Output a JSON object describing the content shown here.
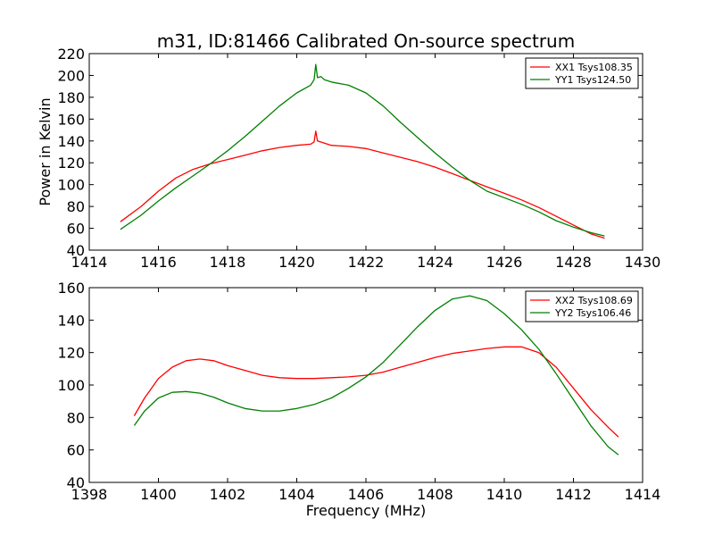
{
  "title": "m31, ID:81466 Calibrated On-source spectrum",
  "chart_data": [
    {
      "type": "line",
      "ylabel": "Power in Kelvin",
      "xlabel": "",
      "xlim": [
        1414,
        1430
      ],
      "ylim": [
        40,
        220
      ],
      "xticks": [
        1414,
        1416,
        1418,
        1420,
        1422,
        1424,
        1426,
        1428,
        1430
      ],
      "yticks": [
        40,
        60,
        80,
        100,
        120,
        140,
        160,
        180,
        200,
        220
      ],
      "legend_position": "top-right",
      "series": [
        {
          "name": "XX1 Tsys108.35",
          "color": "#ff0000",
          "x": [
            1414.9,
            1415.5,
            1416.0,
            1416.5,
            1417.0,
            1417.5,
            1418.0,
            1418.5,
            1419.0,
            1419.5,
            1420.0,
            1420.4,
            1420.5,
            1420.55,
            1420.6,
            1420.7,
            1420.8,
            1421.0,
            1421.5,
            1422.0,
            1422.5,
            1423.0,
            1423.5,
            1424.0,
            1424.5,
            1425.0,
            1425.5,
            1426.0,
            1426.5,
            1427.0,
            1427.5,
            1428.0,
            1428.5,
            1428.9
          ],
          "y": [
            66,
            80,
            94,
            106,
            114,
            119,
            123,
            127,
            131,
            134,
            136,
            137,
            139,
            149,
            140,
            139,
            138,
            136,
            135,
            133,
            129,
            125,
            121,
            116,
            110,
            104,
            98,
            92,
            86,
            79,
            71,
            63,
            55,
            51
          ]
        },
        {
          "name": "YY1 Tsys124.50",
          "color": "#008000",
          "x": [
            1414.9,
            1415.5,
            1416.0,
            1416.5,
            1417.0,
            1417.5,
            1418.0,
            1418.5,
            1419.0,
            1419.5,
            1420.0,
            1420.4,
            1420.5,
            1420.55,
            1420.6,
            1420.7,
            1420.8,
            1421.0,
            1421.5,
            1422.0,
            1422.5,
            1423.0,
            1423.5,
            1424.0,
            1424.5,
            1425.0,
            1425.5,
            1426.0,
            1426.5,
            1427.0,
            1427.5,
            1428.0,
            1428.5,
            1428.9
          ],
          "y": [
            59,
            72,
            85,
            97,
            108,
            119,
            131,
            144,
            158,
            172,
            184,
            191,
            196,
            210,
            198,
            199,
            196,
            194,
            191,
            184,
            172,
            157,
            143,
            129,
            116,
            104,
            94,
            88,
            82,
            75,
            67,
            61,
            56,
            53
          ]
        }
      ]
    },
    {
      "type": "line",
      "ylabel": "",
      "xlabel": "Frequency (MHz)",
      "xlim": [
        1398,
        1414
      ],
      "ylim": [
        40,
        160
      ],
      "xticks": [
        1398,
        1400,
        1402,
        1404,
        1406,
        1408,
        1410,
        1412,
        1414
      ],
      "yticks": [
        40,
        60,
        80,
        100,
        120,
        140,
        160
      ],
      "legend_position": "top-right",
      "series": [
        {
          "name": "XX2 Tsys108.69",
          "color": "#ff0000",
          "x": [
            1399.3,
            1399.6,
            1400.0,
            1400.4,
            1400.8,
            1401.2,
            1401.6,
            1402.0,
            1402.5,
            1403.0,
            1403.5,
            1404.0,
            1404.5,
            1405.0,
            1405.5,
            1406.0,
            1406.5,
            1407.0,
            1407.5,
            1408.0,
            1408.5,
            1409.0,
            1409.5,
            1410.0,
            1410.5,
            1411.0,
            1411.5,
            1412.0,
            1412.5,
            1413.0,
            1413.3
          ],
          "y": [
            81,
            92,
            104,
            111,
            115,
            116,
            115,
            112,
            109,
            106,
            104.5,
            104,
            104,
            104.5,
            105,
            106,
            108,
            111,
            114,
            117,
            119.5,
            121,
            122.5,
            123.5,
            123.5,
            120,
            111,
            98,
            85,
            74,
            68
          ]
        },
        {
          "name": "YY2 Tsys106.46",
          "color": "#008000",
          "x": [
            1399.3,
            1399.6,
            1400.0,
            1400.4,
            1400.8,
            1401.2,
            1401.6,
            1402.0,
            1402.5,
            1403.0,
            1403.5,
            1404.0,
            1404.5,
            1405.0,
            1405.5,
            1406.0,
            1406.5,
            1407.0,
            1407.5,
            1408.0,
            1408.5,
            1409.0,
            1409.5,
            1410.0,
            1410.5,
            1411.0,
            1411.5,
            1412.0,
            1412.5,
            1413.0,
            1413.3
          ],
          "y": [
            75,
            84,
            92,
            95.5,
            96,
            95,
            92.5,
            89,
            85.5,
            84,
            84,
            85.5,
            88,
            92,
            98,
            105,
            114,
            125,
            136,
            146,
            153,
            155,
            152,
            144,
            134,
            122,
            107,
            91,
            75,
            62,
            57
          ]
        }
      ]
    }
  ]
}
